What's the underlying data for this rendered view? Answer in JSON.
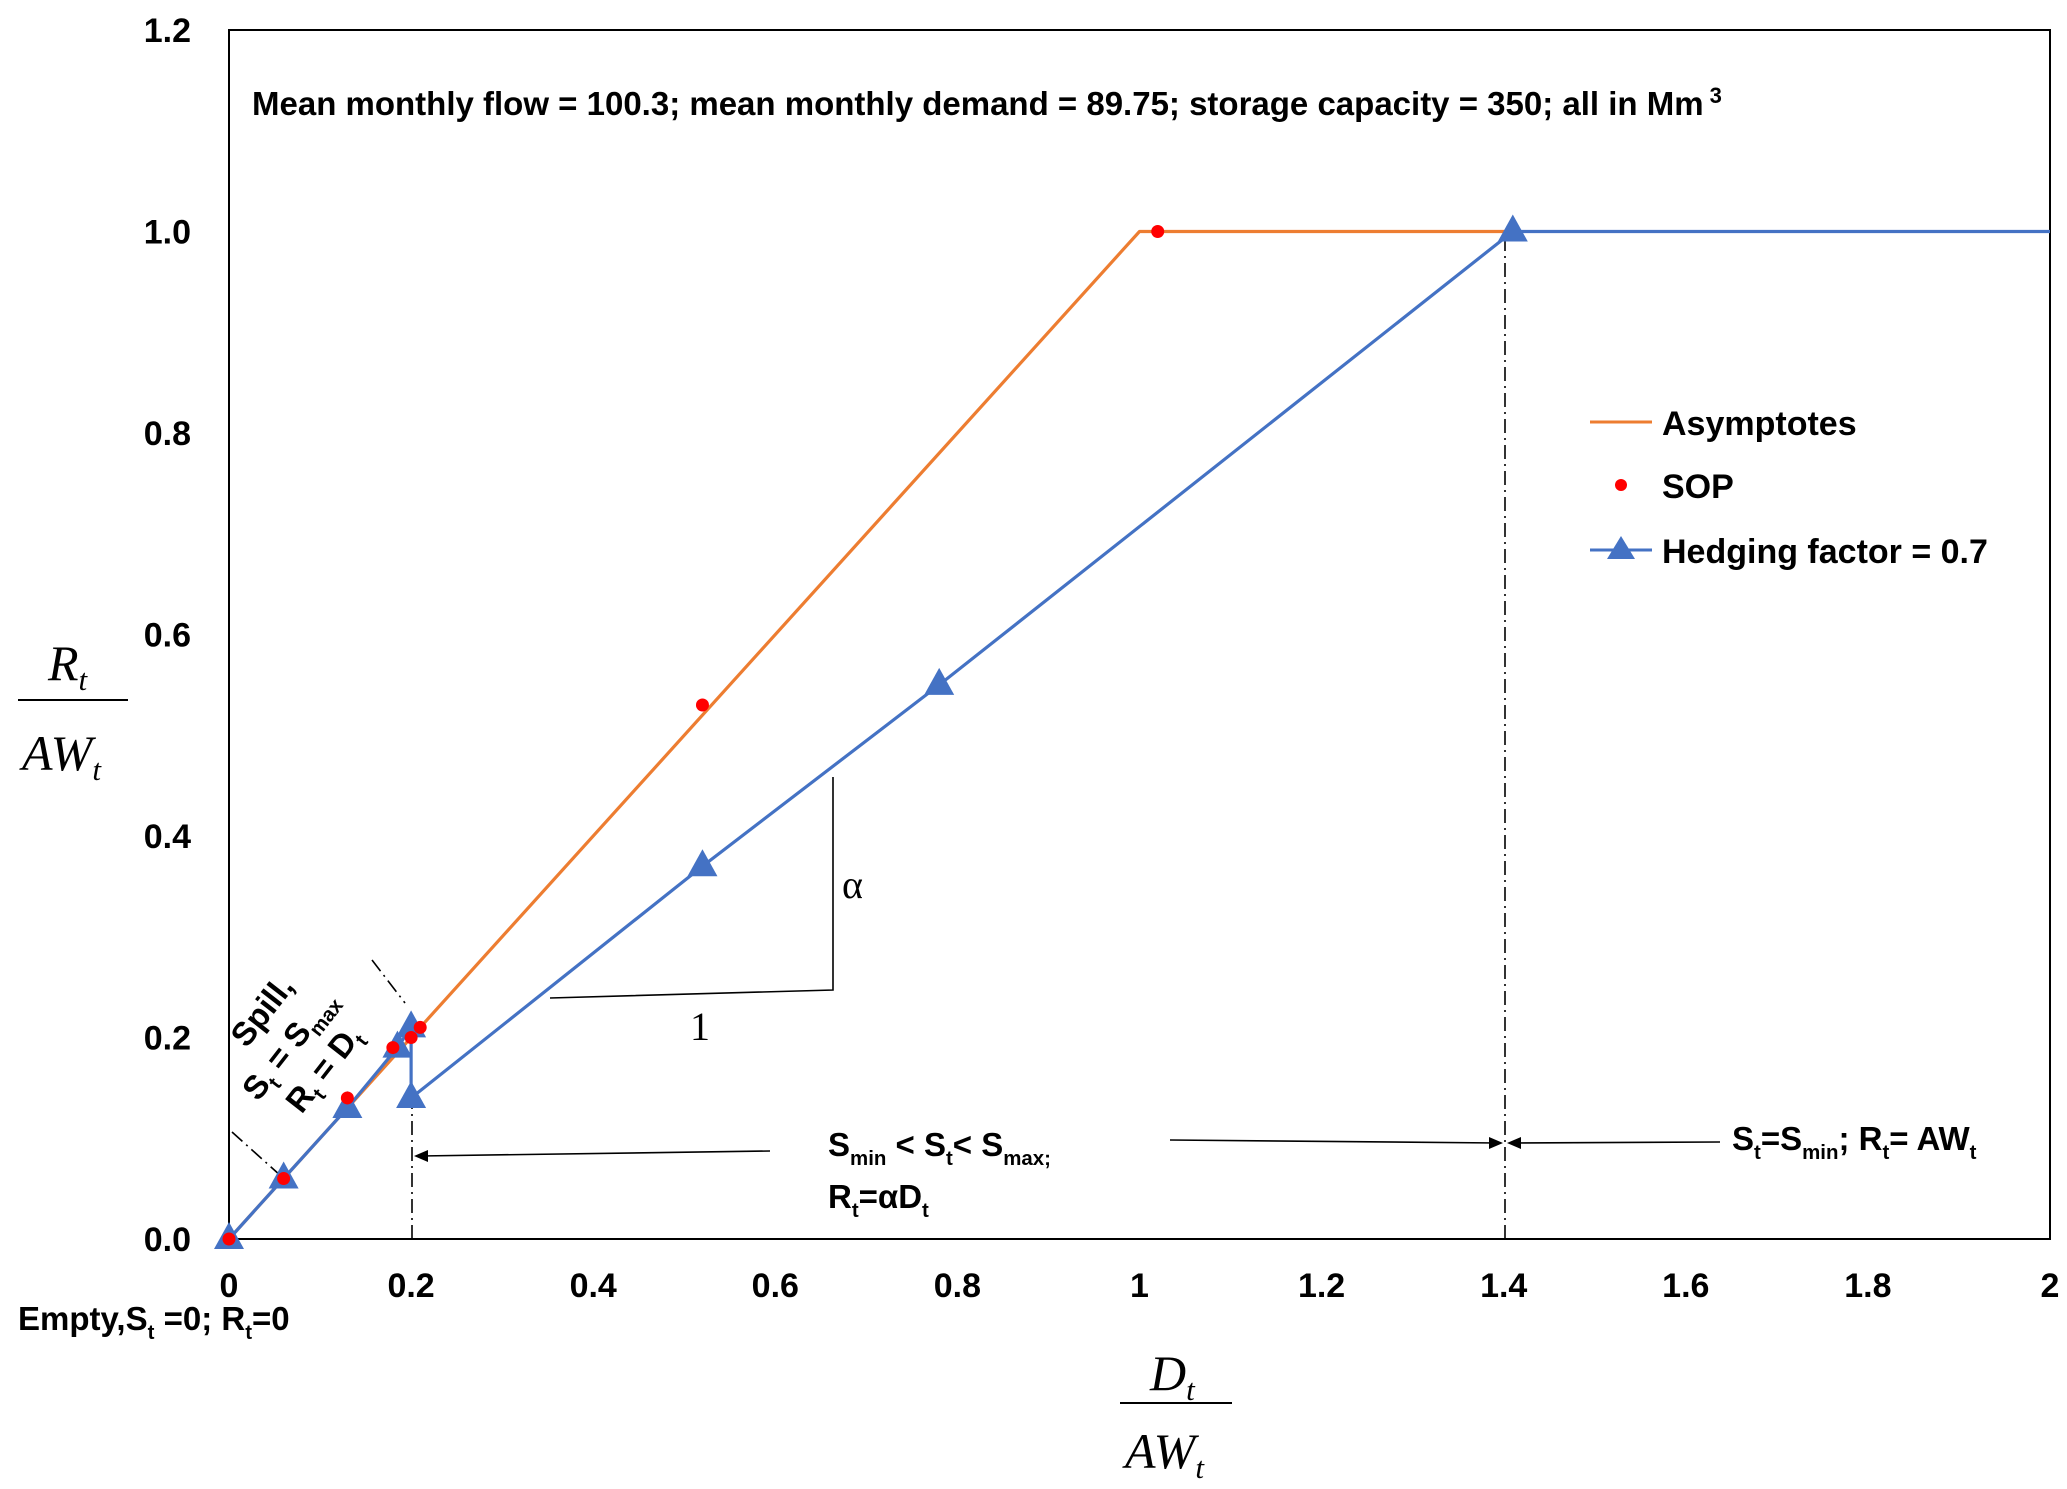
{
  "chart_data": {
    "type": "line",
    "xlim": [
      0,
      2
    ],
    "ylim": [
      0,
      1.2
    ],
    "x_ticks": [
      "0",
      "0.2",
      "0.4",
      "0.6",
      "0.8",
      "1",
      "1.2",
      "1.4",
      "1.6",
      "1.8",
      "2"
    ],
    "y_ticks": [
      "0.0",
      "0.2",
      "0.4",
      "0.6",
      "0.8",
      "1.0",
      "1.2"
    ],
    "xlabel": {
      "num": "D",
      "num_sub": "t",
      "den": "AW",
      "den_sub": "t"
    },
    "ylabel": {
      "num": "R",
      "num_sub": "t",
      "den": "AW",
      "den_sub": "t"
    },
    "title_note": {
      "text": "Mean monthly flow = 100.3; mean monthly demand = 89.75; storage capacity = 350; all in Mm",
      "sup": "3"
    },
    "grid": false,
    "legend_position": "right",
    "legend": [
      {
        "label": "Asymptotes",
        "color": "#ED7D31",
        "marker": "none"
      },
      {
        "label": "SOP",
        "color": "#FF0000",
        "marker": "dot"
      },
      {
        "label": "Hedging factor = 0.7",
        "color": "#4472C4",
        "marker": "triangle"
      }
    ],
    "series": [
      {
        "name": "Asymptotes",
        "color": "#ED7D31",
        "style": "line",
        "points": [
          [
            0,
            0
          ],
          [
            0.06,
            0.06
          ],
          [
            0.13,
            0.13
          ],
          [
            0.19,
            0.19
          ],
          [
            0.2,
            0.2
          ],
          [
            0.21,
            0.21
          ],
          [
            0.52,
            0.52
          ],
          [
            0.98,
            0.98
          ],
          [
            1.0,
            1.0
          ],
          [
            1.41,
            1.0
          ]
        ]
      },
      {
        "name": "SOP",
        "color": "#FF0000",
        "style": "markers",
        "points": [
          [
            0,
            0
          ],
          [
            0.06,
            0.06
          ],
          [
            0.13,
            0.14
          ],
          [
            0.18,
            0.19
          ],
          [
            0.2,
            0.2
          ],
          [
            0.21,
            0.21
          ],
          [
            0.52,
            0.53
          ],
          [
            1.02,
            1.0
          ]
        ]
      },
      {
        "name": "Hedging factor = 0.7",
        "color": "#4472C4",
        "style": "line+markers",
        "points": [
          [
            0,
            0
          ],
          [
            0.06,
            0.06
          ],
          [
            0.13,
            0.13
          ],
          [
            0.185,
            0.19
          ],
          [
            0.2,
            0.21
          ],
          [
            0.2,
            0.14
          ],
          [
            0.52,
            0.37
          ],
          [
            0.78,
            0.55
          ],
          [
            1.41,
            1.0
          ],
          [
            2.0,
            1.0
          ]
        ]
      }
    ],
    "annotations": {
      "alpha": "α",
      "one": "1",
      "spill": "Spill,",
      "spill_s": "S",
      "spill_s_sub": "t",
      "spill_s_mid": " = S",
      "spill_s_max": "max",
      "spill_r": "R",
      "spill_r_sub": "t",
      "spill_r_mid": " = D",
      "spill_r_sub2": "t",
      "mid_line1_a": "S",
      "mid_line1_a_sub": "min",
      "mid_line1_b": " < S",
      "mid_line1_b_sub": "t",
      "mid_line1_c": "< S",
      "mid_line1_c_sub": "max;",
      "mid_line2_a": "R",
      "mid_line2_a_sub": "t",
      "mid_line2_b": "=αD",
      "mid_line2_b_sub": "t",
      "right_a": "S",
      "right_a_sub": "t",
      "right_b": "=S",
      "right_b_sub": "min",
      "right_c": "; R",
      "right_c_sub": "t",
      "right_d": "= AW",
      "right_d_sub": "t",
      "empty_a": "Empty,S",
      "empty_a_sub": "t",
      "empty_b": " =0; R",
      "empty_b_sub": "t",
      "empty_c": "=0"
    }
  }
}
